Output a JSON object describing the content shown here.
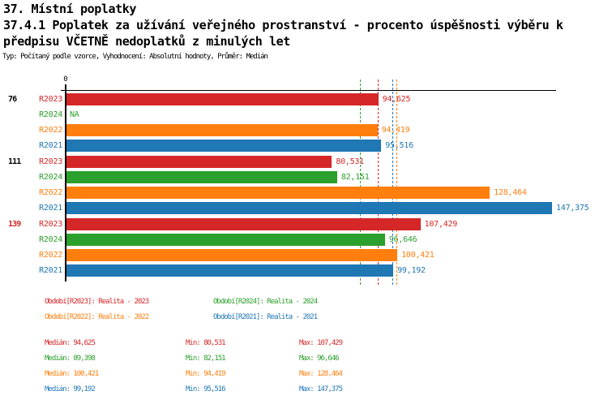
{
  "header": {
    "title": "37. Místní poplatky",
    "subtitle_line1": "37.4.1 Poplatek za užívání veřejného prostranství - procento úspěšnosti výběru k",
    "subtitle_line2": "předpisu VČETNĚ nedoplatků z minulých let",
    "meta": "Typ: Počítaný podle vzorce, Vyhodnocení: Absolutní hodnoty, Průměr: Medián"
  },
  "colors": {
    "r2023": "#d62728",
    "r2024": "#2ca02c",
    "r2022": "#ff7f0e",
    "r2021": "#1f77b4",
    "axis": "#000000"
  },
  "chart_data": {
    "type": "bar",
    "orientation": "horizontal",
    "unit": "percent",
    "x_tick": "0",
    "xlim": [
      0,
      150
    ],
    "grid": false,
    "series_order": [
      "R2023",
      "R2024",
      "R2022",
      "R2021"
    ],
    "groups": [
      {
        "label": "76",
        "label_color": "#000000",
        "bars": [
          {
            "series": "R2023",
            "value": 94.625,
            "display": "94,625"
          },
          {
            "series": "R2024",
            "value": null,
            "display": "NA"
          },
          {
            "series": "R2022",
            "value": 94.419,
            "display": "94,419"
          },
          {
            "series": "R2021",
            "value": 95.516,
            "display": "95,516"
          }
        ]
      },
      {
        "label": "111",
        "label_color": "#000000",
        "bars": [
          {
            "series": "R2023",
            "value": 80.531,
            "display": "80,531"
          },
          {
            "series": "R2024",
            "value": 82.151,
            "display": "82,151"
          },
          {
            "series": "R2022",
            "value": 128.464,
            "display": "128,464"
          },
          {
            "series": "R2021",
            "value": 147.375,
            "display": "147,375"
          }
        ]
      },
      {
        "label": "139",
        "label_color": "#d62728",
        "bars": [
          {
            "series": "R2023",
            "value": 107.429,
            "display": "107,429"
          },
          {
            "series": "R2024",
            "value": 96.646,
            "display": "96,646"
          },
          {
            "series": "R2022",
            "value": 100.421,
            "display": "100,421"
          },
          {
            "series": "R2021",
            "value": 99.192,
            "display": "99,192"
          }
        ]
      }
    ],
    "medians": [
      {
        "series": "R2023",
        "value": 94.625
      },
      {
        "series": "R2024",
        "value": 89.398
      },
      {
        "series": "R2022",
        "value": 100.421
      },
      {
        "series": "R2021",
        "value": 99.192
      }
    ],
    "legend": [
      {
        "series": "R2023",
        "label": "Období[R2023]: Realita - 2023"
      },
      {
        "series": "R2024",
        "label": "Období[R2024]: Realita - 2024"
      },
      {
        "series": "R2022",
        "label": "Období[R2022]: Realita - 2022"
      },
      {
        "series": "R2021",
        "label": "Období[R2021]: Realita - 2021"
      }
    ],
    "stat_labels": {
      "median": "Medián",
      "min": "Min",
      "max": "Max"
    },
    "stats": [
      {
        "series": "R2023",
        "median": "94,625",
        "min": "80,531",
        "max": "107,429"
      },
      {
        "series": "R2024",
        "median": "89,398",
        "min": "82,151",
        "max": "96,646"
      },
      {
        "series": "R2022",
        "median": "100,421",
        "min": "94,419",
        "max": "128,464"
      },
      {
        "series": "R2021",
        "median": "99,192",
        "min": "95,516",
        "max": "147,375"
      }
    ]
  }
}
